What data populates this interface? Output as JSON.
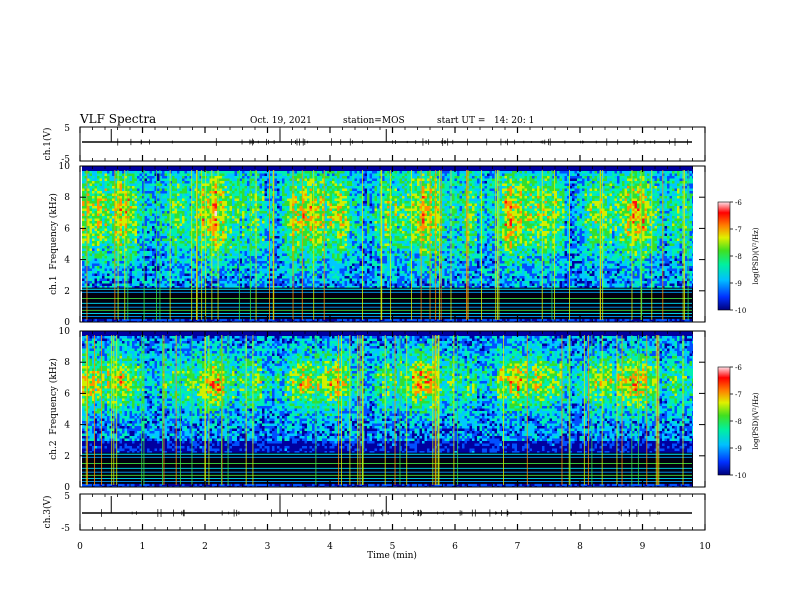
{
  "header": {
    "title": "VLF Spectra",
    "date": "Oct. 19, 2021",
    "station": "station=MOS",
    "start": "start UT =   14: 20: 1"
  },
  "colors": {
    "colormap": [
      "#0000a0",
      "#0050ff",
      "#00c8ff",
      "#00f0b0",
      "#30e030",
      "#d0f000",
      "#ff9000",
      "#ff1010",
      "#ffd8e0"
    ],
    "background_band": "#000000",
    "trace": "#000000"
  },
  "chart_data": [
    {
      "type": "line",
      "panel": "ch1-waveform",
      "ylabel": "ch.1(V)",
      "ylim": [
        -5,
        5
      ],
      "yticks": [
        "5",
        "-5"
      ],
      "xlim": [
        0,
        10
      ]
    },
    {
      "type": "heatmap",
      "panel": "ch1-spectrogram",
      "ylabel": "ch.1  Frequency (kHz)",
      "ylim": [
        0,
        10
      ],
      "yticks": [
        "0",
        "2",
        "4",
        "6",
        "8",
        "10"
      ],
      "xlim": [
        0,
        10
      ],
      "colorbar": {
        "label": "log(PSD)(V²/Hz)",
        "range": [
          -10,
          -6
        ],
        "ticks": [
          "-6",
          "-7",
          "-8",
          "-9",
          "-10"
        ]
      }
    },
    {
      "type": "heatmap",
      "panel": "ch2-spectrogram",
      "ylabel": "ch.2  Frequency (kHz)",
      "ylim": [
        0,
        10
      ],
      "yticks": [
        "0",
        "2",
        "4",
        "6",
        "8",
        "10"
      ],
      "xlim": [
        0,
        10
      ],
      "colorbar": {
        "label": "log(PSD)(V²/Hz)",
        "range": [
          -10,
          -6
        ],
        "ticks": [
          "-6",
          "-7",
          "-8",
          "-9",
          "-10"
        ]
      }
    },
    {
      "type": "line",
      "panel": "ch3-waveform",
      "ylabel": "ch.3(V)",
      "ylim": [
        -5,
        5
      ],
      "yticks": [
        "5",
        "-5"
      ],
      "xlim": [
        0,
        10
      ],
      "xlabel": "Time (min)",
      "xticks": [
        "0",
        "1",
        "2",
        "3",
        "4",
        "5",
        "6",
        "7",
        "8",
        "9",
        "10"
      ]
    }
  ]
}
